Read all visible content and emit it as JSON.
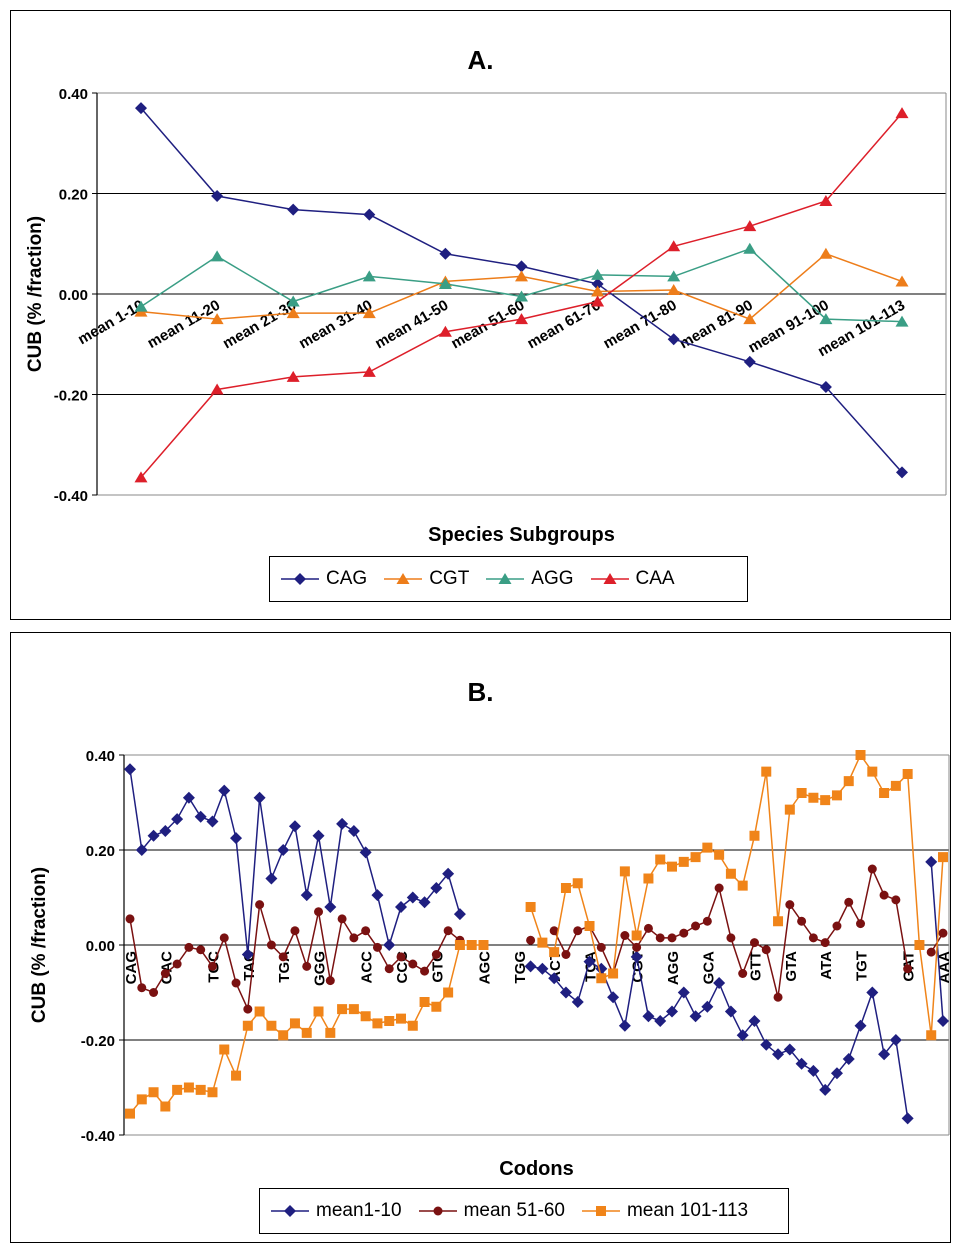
{
  "chart_data": [
    {
      "type": "line",
      "title": "A.",
      "xlabel": "Species Subgroups",
      "ylabel": "CUB (% /fraction)",
      "ylim": [
        -0.4,
        0.4
      ],
      "yticks": [
        "0.40",
        "0.20",
        "0.00",
        "-0.20",
        "-0.40"
      ],
      "grid": "horizontal major lines",
      "legend_position": "bottom",
      "categories": [
        "mean 1-10",
        "mean 11-20",
        "mean 21-30",
        "mean 31-40",
        "mean 41-50",
        "mean 51-60",
        "mean 61-70",
        "mean 71-80",
        "mean 81-90",
        "mean 91-100",
        "mean 101-113"
      ],
      "series": [
        {
          "name": "CAG",
          "color": "#1f1f80",
          "marker": "diamond",
          "values": [
            0.37,
            0.195,
            0.168,
            0.158,
            0.08,
            0.055,
            0.02,
            -0.09,
            -0.135,
            -0.185,
            -0.355
          ]
        },
        {
          "name": "CGT",
          "color": "#ed7d1a",
          "marker": "triangle",
          "values": [
            -0.035,
            -0.05,
            -0.038,
            -0.038,
            0.025,
            0.035,
            0.005,
            0.008,
            -0.05,
            0.08,
            0.025
          ]
        },
        {
          "name": "AGG",
          "color": "#3a9e85",
          "marker": "triangle",
          "values": [
            -0.025,
            0.075,
            -0.015,
            0.035,
            0.02,
            -0.005,
            0.038,
            0.035,
            0.09,
            -0.05,
            -0.055
          ]
        },
        {
          "name": "CAA",
          "color": "#dd1f2a",
          "marker": "triangle",
          "values": [
            -0.365,
            -0.19,
            -0.165,
            -0.155,
            -0.075,
            -0.05,
            -0.015,
            0.095,
            0.135,
            0.185,
            0.36
          ]
        }
      ]
    },
    {
      "type": "line",
      "title": "B.",
      "xlabel": "Codons",
      "ylabel": "CUB (% /fraction)",
      "ylim": [
        -0.4,
        0.4
      ],
      "yticks": [
        "0.40",
        "0.20",
        "0.00",
        "-0.20",
        "-0.40"
      ],
      "grid": "horizontal major lines",
      "legend_position": "bottom",
      "tick_labels": [
        "CAG",
        "GAC",
        "TGC",
        "TAC",
        "TGA",
        "GGG",
        "ACC",
        "CCC",
        "GTC",
        "AGC",
        "TGG",
        "ACT",
        "TCA",
        "CGT",
        "AGG",
        "GCA",
        "GTT",
        "GTA",
        "ATA",
        "TGT",
        "GAT",
        "AAA"
      ],
      "series": [
        {
          "name": "mean1-10",
          "color": "#1f1f80",
          "marker": "diamond",
          "values": [
            0.37,
            0.2,
            0.23,
            0.24,
            0.265,
            0.31,
            0.27,
            0.26,
            0.325,
            0.225,
            -0.02,
            0.31,
            0.14,
            0.2,
            0.25,
            0.105,
            0.23,
            0.08,
            0.255,
            0.24,
            0.195,
            0.105,
            0.0,
            0.08,
            0.1,
            0.09,
            0.12,
            0.15,
            0.065,
            null,
            null,
            null,
            null,
            null,
            -0.045,
            -0.05,
            -0.07,
            -0.1,
            -0.12,
            -0.035,
            -0.05,
            -0.11,
            -0.17,
            -0.025,
            -0.15,
            -0.16,
            -0.14,
            -0.1,
            -0.15,
            -0.13,
            -0.08,
            -0.14,
            -0.19,
            -0.16,
            -0.21,
            -0.23,
            -0.22,
            -0.25,
            -0.265,
            -0.305,
            -0.27,
            -0.24,
            -0.17,
            -0.1,
            -0.23,
            -0.2,
            -0.365,
            null,
            0.175,
            -0.16
          ]
        },
        {
          "name": "mean 51-60",
          "color": "#7a1111",
          "marker": "circle",
          "values": [
            0.055,
            -0.09,
            -0.1,
            -0.06,
            -0.04,
            -0.005,
            -0.01,
            -0.045,
            0.015,
            -0.08,
            -0.135,
            0.085,
            0.0,
            -0.025,
            0.03,
            -0.045,
            0.07,
            -0.075,
            0.055,
            0.015,
            0.03,
            -0.005,
            -0.05,
            -0.025,
            -0.04,
            -0.055,
            -0.02,
            0.03,
            0.01,
            null,
            null,
            null,
            null,
            null,
            0.01,
            null,
            0.03,
            -0.02,
            0.03,
            0.04,
            -0.005,
            -0.06,
            0.02,
            -0.005,
            0.035,
            0.015,
            0.015,
            0.025,
            0.04,
            0.05,
            0.12,
            0.015,
            -0.06,
            0.005,
            -0.01,
            -0.11,
            0.085,
            0.05,
            0.015,
            0.005,
            0.04,
            0.09,
            0.045,
            0.16,
            0.105,
            0.095,
            -0.05,
            null,
            -0.015,
            0.025
          ]
        },
        {
          "name": "mean 101-113",
          "color": "#f08419",
          "marker": "square",
          "values": [
            -0.355,
            -0.325,
            -0.31,
            -0.34,
            -0.305,
            -0.3,
            -0.305,
            -0.31,
            -0.22,
            -0.275,
            -0.17,
            -0.14,
            -0.17,
            -0.19,
            -0.165,
            -0.185,
            -0.14,
            -0.185,
            -0.135,
            -0.135,
            -0.15,
            -0.165,
            -0.16,
            -0.155,
            -0.17,
            -0.12,
            -0.13,
            -0.1,
            0.0,
            0.0,
            0.0,
            null,
            null,
            null,
            0.08,
            0.005,
            -0.015,
            0.12,
            0.13,
            0.04,
            -0.07,
            -0.06,
            0.155,
            0.02,
            0.14,
            0.18,
            0.165,
            0.175,
            0.185,
            0.205,
            0.19,
            0.15,
            0.125,
            0.23,
            0.365,
            0.05,
            0.285,
            0.32,
            0.31,
            0.305,
            0.315,
            0.345,
            0.4,
            0.365,
            0.32,
            0.335,
            0.36,
            0.0,
            -0.19,
            0.185
          ]
        }
      ]
    }
  ]
}
